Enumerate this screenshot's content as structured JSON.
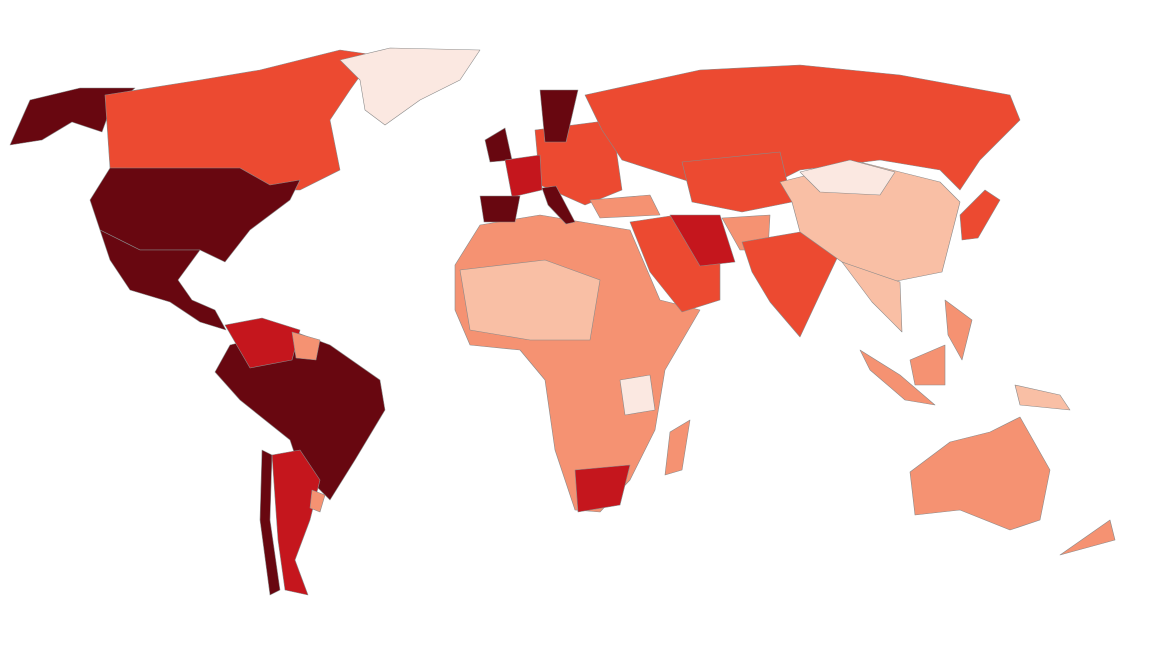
{
  "map": {
    "palette": [
      "#fbe8e1",
      "#f9bfa5",
      "#f59272",
      "#ec4a31",
      "#c5161d",
      "#680710"
    ]
  }
}
